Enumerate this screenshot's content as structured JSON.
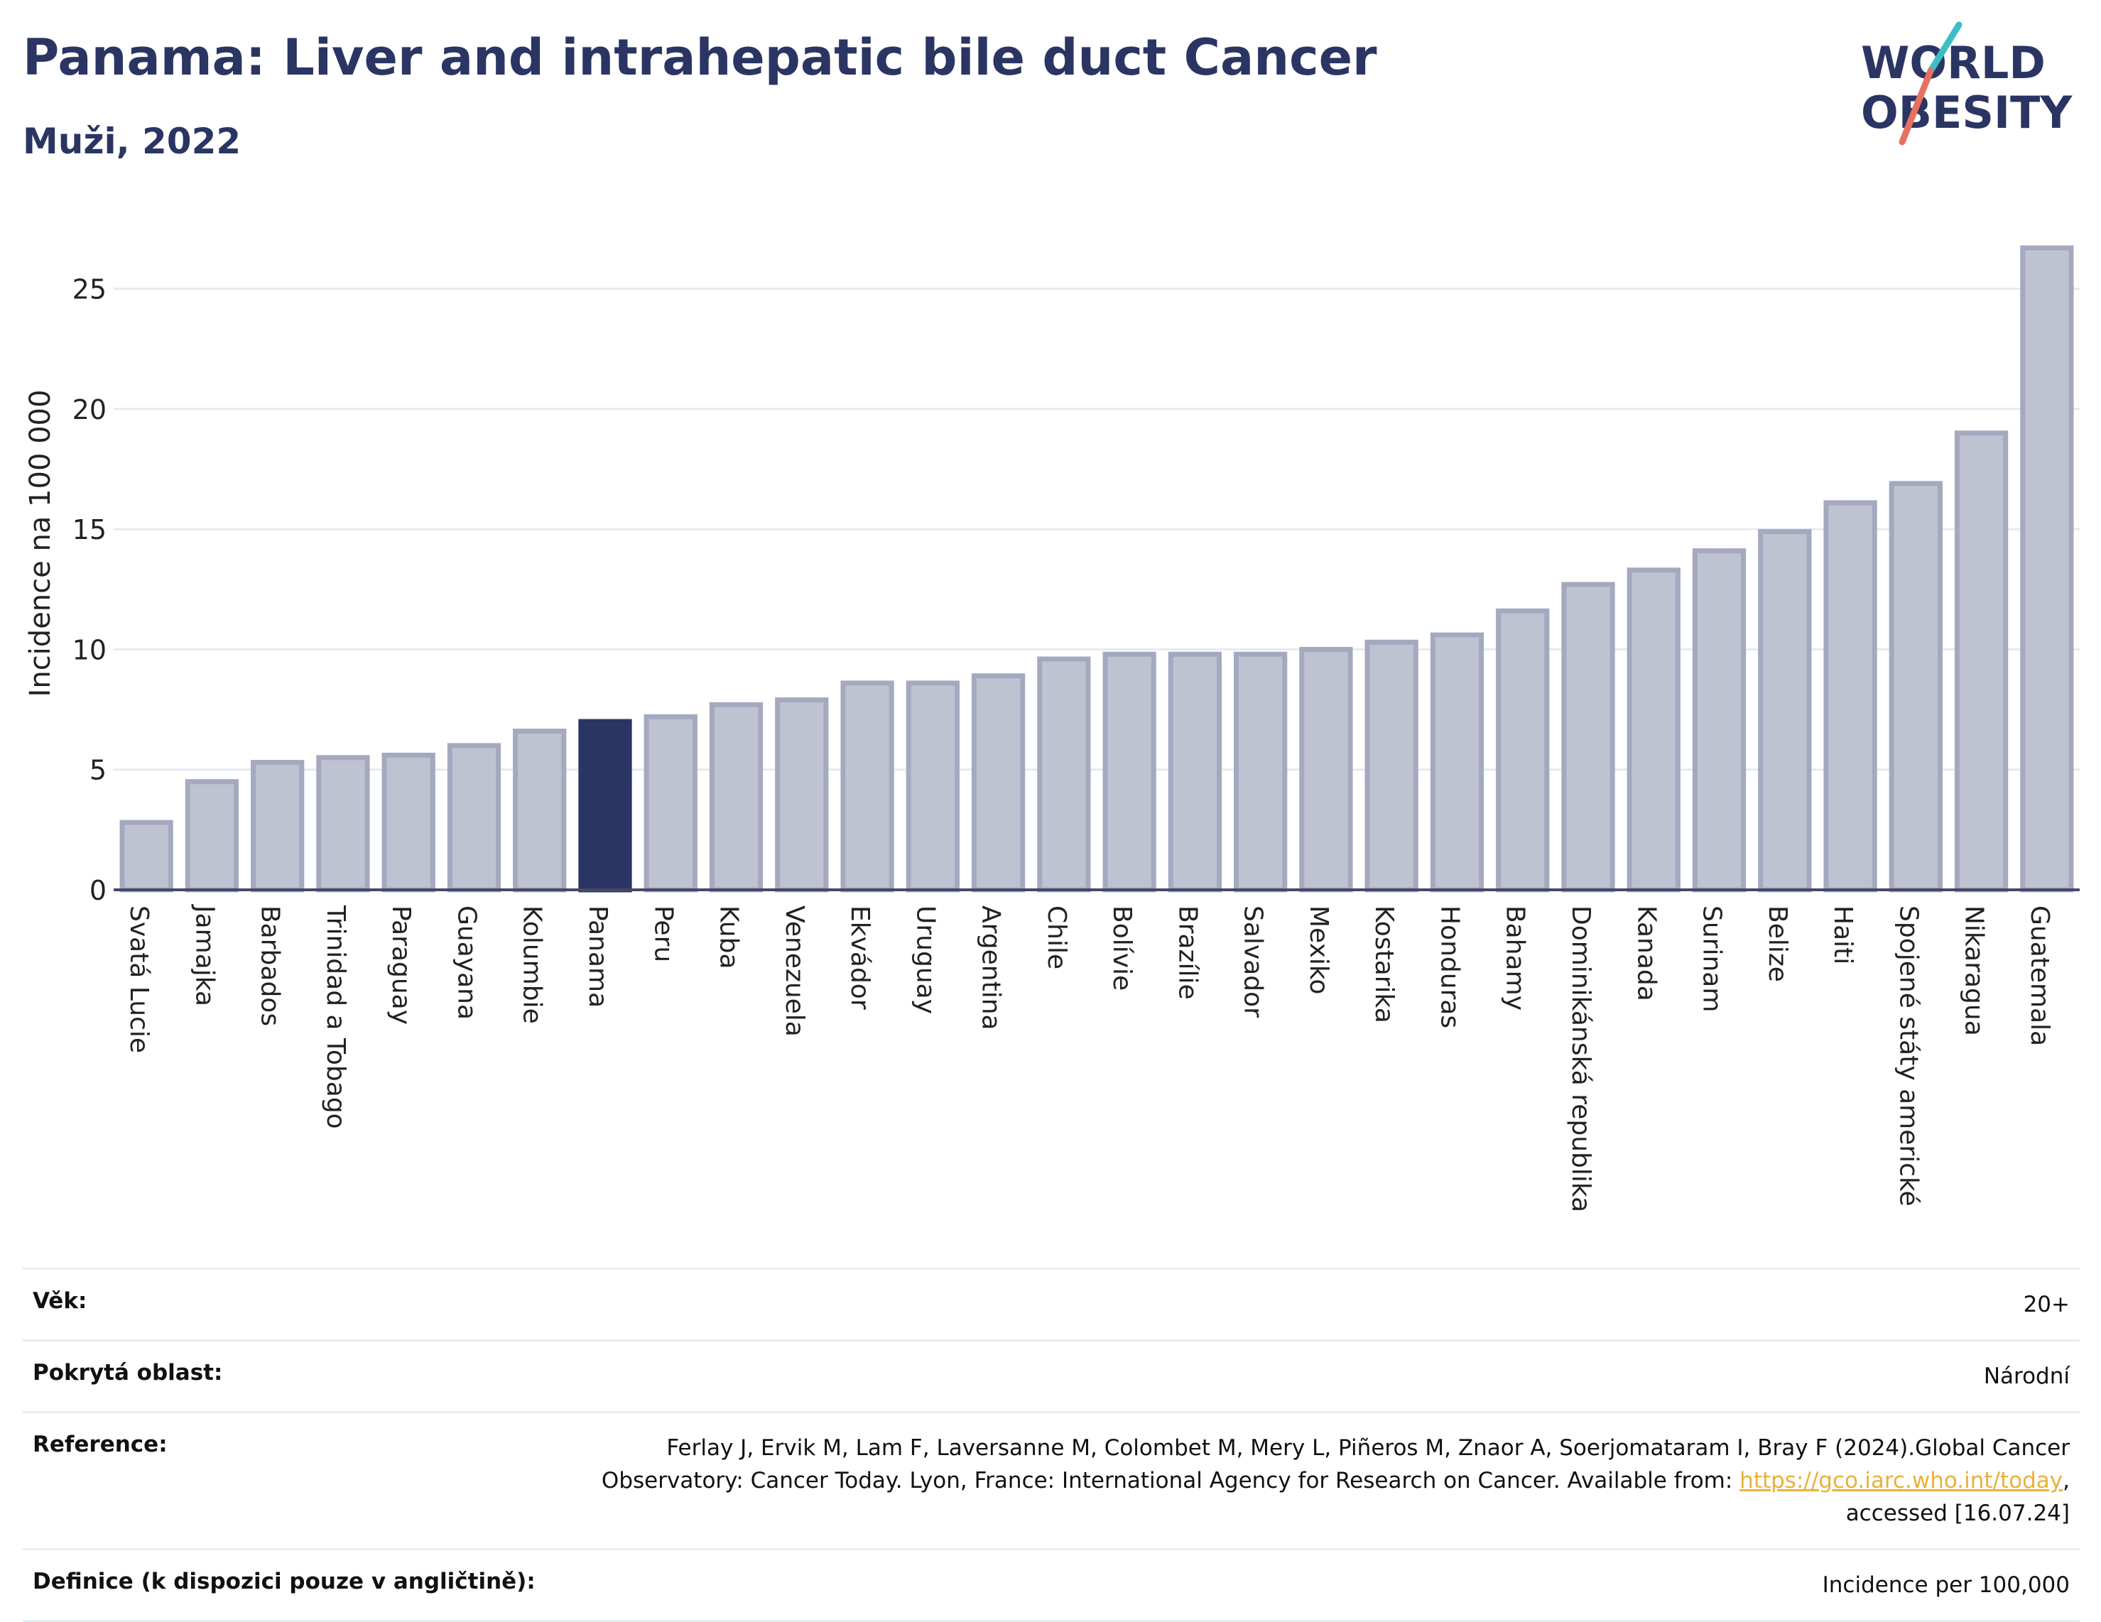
{
  "title": "Panama: Liver and intrahepatic bile duct Cancer",
  "subtitle": "Muži, 2022",
  "logo": {
    "line1": "WORLD",
    "line2": "OBESITY"
  },
  "colors": {
    "bar": "#bfc3d1",
    "bar_border": "#a4a9bf",
    "highlight": "#2b3563",
    "grid": "#e6eaf0",
    "axis": "#444a66",
    "accent_teal": "#3dbdc4",
    "accent_red": "#e8705f"
  },
  "chart_data": {
    "type": "bar",
    "ylabel": "Incidence na 100 000",
    "xlabel": "",
    "ylim": [
      0,
      27.5
    ],
    "yticks": [
      0,
      5,
      10,
      15,
      20,
      25
    ],
    "grid": true,
    "highlight": "Panama",
    "categories": [
      "Svatá Lucie",
      "Jamajka",
      "Barbados",
      "Trinidad a Tobago",
      "Paraguay",
      "Guayana",
      "Kolumbie",
      "Panama",
      "Peru",
      "Kuba",
      "Venezuela",
      "Ekvádor",
      "Uruguay",
      "Argentina",
      "Chile",
      "Bolívie",
      "Brazílie",
      "Salvador",
      "Mexiko",
      "Kostarika",
      "Honduras",
      "Bahamy",
      "Dominikánská republika",
      "Kanada",
      "Surinam",
      "Belize",
      "Haiti",
      "Spojené státy americké",
      "Nikaragua",
      "Guatemala"
    ],
    "values": [
      2.8,
      4.5,
      5.3,
      5.5,
      5.6,
      6.0,
      6.6,
      7.0,
      7.2,
      7.7,
      7.9,
      8.6,
      8.6,
      8.9,
      9.6,
      9.8,
      9.8,
      9.8,
      10.0,
      10.3,
      10.6,
      11.6,
      12.7,
      13.3,
      14.1,
      14.9,
      16.1,
      16.9,
      19.0,
      26.7
    ]
  },
  "info": [
    {
      "label": "Věk:",
      "value": "20+"
    },
    {
      "label": "Pokrytá oblast:",
      "value": "Národní"
    },
    {
      "label": "Reference:",
      "value_pre": "Ferlay J, Ervik M, Lam F, Laversanne M, Colombet M, Mery L, Piñeros M, Znaor A, Soerjomataram I, Bray F (2024).Global Cancer Observatory: Cancer Today. Lyon, France: International Agency for Research on Cancer. Available from: ",
      "link": "https://gco.iarc.who.int/today",
      "value_post": ", accessed [16.07.24]"
    },
    {
      "label": "Definice (k dispozici pouze v angličtině):",
      "value": "Incidence per 100,000"
    }
  ]
}
